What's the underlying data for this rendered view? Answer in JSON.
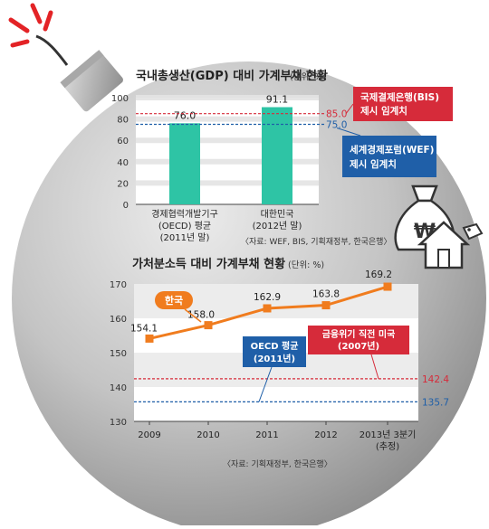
{
  "chart_data": [
    {
      "type": "bar",
      "title": "국내총생산(GDP) 대비 가계부채 현황",
      "unit": "(단위: %)",
      "categories": [
        "경제협력개발기구 (OECD) 평균 (2011년 말)",
        "대한민국 (2012년 말)"
      ],
      "category_lines": [
        [
          "경제협력개발기구",
          "(OECD) 평균",
          "(2011년 말)"
        ],
        [
          "대한민국",
          "(2012년 말)"
        ]
      ],
      "values": [
        76.0,
        91.1
      ],
      "value_labels": [
        "76.0",
        "91.1"
      ],
      "ylim": [
        0,
        100
      ],
      "yticks": [
        0,
        20,
        40,
        60,
        80,
        100
      ],
      "bar_color": "#2ec4a5",
      "reference_lines": [
        {
          "value": 85.0,
          "value_label": "85.0",
          "color": "#d62b3a",
          "label_lines": [
            "국제결제은행(BIS)",
            "제시 임계치"
          ]
        },
        {
          "value": 75.0,
          "value_label": "75.0",
          "color": "#1f5fa8",
          "label_lines": [
            "세계경제포럼(WEF)",
            "제시 임계치"
          ]
        }
      ],
      "source": "〈자료: WEF, BIS, 기획재정부, 한국은행〉"
    },
    {
      "type": "line",
      "title": "가처분소득 대비 가계부채 현황",
      "unit": "(단위: %)",
      "x": [
        "2009",
        "2010",
        "2011",
        "2012",
        "2013년 3분기"
      ],
      "x_sub": [
        "",
        "",
        "",
        "",
        "(추정)"
      ],
      "series": [
        {
          "name": "한국",
          "values": [
            154.1,
            158.0,
            162.9,
            163.8,
            169.2
          ],
          "value_labels": [
            "154.1",
            "158.0",
            "162.9",
            "163.8",
            "169.2"
          ],
          "color": "#f07c1e"
        }
      ],
      "ylim": [
        130,
        170
      ],
      "yticks": [
        130,
        140,
        150,
        160,
        170
      ],
      "reference_lines": [
        {
          "value": 142.4,
          "value_label": "142.4",
          "color": "#d62b3a",
          "label_lines": [
            "금융위기 직전 미국",
            "(2007년)"
          ]
        },
        {
          "value": 135.7,
          "value_label": "135.7",
          "color": "#1f5fa8",
          "label_lines": [
            "OECD 평균",
            "(2011년)"
          ]
        }
      ],
      "source": "〈자료: 기획재정부, 한국은행〉"
    }
  ]
}
